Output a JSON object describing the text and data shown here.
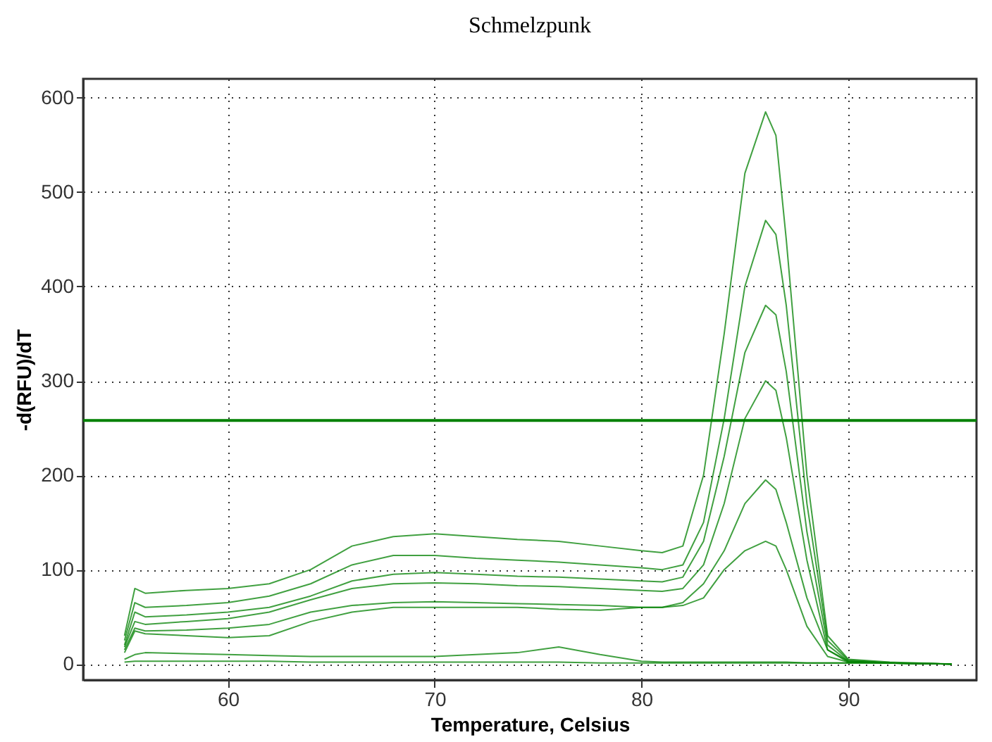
{
  "chart_data": {
    "type": "line",
    "title": "Schmelzpunk",
    "xlabel": "Temperature, Celsius",
    "ylabel": "-d(RFU)/dT",
    "xlim": [
      53,
      96.2
    ],
    "ylim": [
      -17,
      620
    ],
    "xticks": [
      60,
      70,
      80,
      90
    ],
    "yticks": [
      0,
      100,
      200,
      300,
      400,
      500,
      600
    ],
    "grid": true,
    "line_style": "solid",
    "marker": "none",
    "x": [
      55,
      55.5,
      56,
      58,
      60,
      62,
      64,
      66,
      68,
      70,
      72,
      74,
      76,
      78,
      80,
      81,
      82,
      83,
      84,
      85,
      86,
      86.5,
      87,
      88,
      89,
      90,
      92,
      95
    ],
    "series": [
      {
        "color": "#008000",
        "values": [
          30,
          80,
          75,
          78,
          80,
          85,
          100,
          125,
          135,
          138,
          135,
          132,
          130,
          125,
          120,
          118,
          125,
          200,
          350,
          520,
          585,
          560,
          450,
          200,
          30,
          5,
          2,
          0
        ]
      },
      {
        "color": "#008000",
        "values": [
          25,
          65,
          60,
          62,
          65,
          72,
          85,
          105,
          115,
          115,
          112,
          110,
          108,
          105,
          102,
          100,
          105,
          150,
          260,
          400,
          470,
          455,
          380,
          170,
          25,
          4,
          1,
          0
        ]
      },
      {
        "color": "#008000",
        "values": [
          20,
          55,
          50,
          52,
          55,
          60,
          72,
          88,
          95,
          97,
          95,
          93,
          92,
          90,
          88,
          87,
          92,
          130,
          220,
          330,
          380,
          370,
          310,
          140,
          20,
          3,
          1,
          0
        ]
      },
      {
        "color": "#008000",
        "values": [
          18,
          45,
          42,
          45,
          48,
          55,
          68,
          80,
          85,
          86,
          85,
          83,
          82,
          80,
          78,
          77,
          80,
          105,
          170,
          260,
          300,
          290,
          240,
          110,
          15,
          3,
          1,
          0
        ]
      },
      {
        "color": "#008000",
        "values": [
          15,
          38,
          35,
          36,
          38,
          42,
          55,
          62,
          65,
          66,
          65,
          64,
          63,
          62,
          60,
          60,
          65,
          85,
          120,
          170,
          195,
          185,
          150,
          70,
          15,
          2,
          1,
          0
        ]
      },
      {
        "color": "#008000",
        "values": [
          12,
          35,
          32,
          30,
          28,
          30,
          45,
          55,
          60,
          60,
          60,
          60,
          58,
          57,
          60,
          60,
          62,
          70,
          100,
          120,
          130,
          125,
          100,
          40,
          8,
          2,
          1,
          0
        ]
      },
      {
        "color": "#008000",
        "values": [
          5,
          10,
          12,
          11,
          10,
          9,
          8,
          8,
          8,
          8,
          10,
          12,
          18,
          10,
          3,
          2,
          2,
          2,
          2,
          2,
          2,
          2,
          2,
          1,
          1,
          1,
          1,
          0
        ]
      },
      {
        "color": "#008000",
        "values": [
          2,
          3,
          3,
          3,
          3,
          3,
          2,
          2,
          2,
          2,
          2,
          2,
          2,
          1,
          1,
          1,
          1,
          1,
          1,
          1,
          1,
          1,
          1,
          1,
          1,
          1,
          1,
          0
        ]
      }
    ],
    "ref_lines": [
      {
        "axis": "y",
        "value": 258,
        "color": "#008000",
        "line_style": "solid"
      }
    ]
  }
}
